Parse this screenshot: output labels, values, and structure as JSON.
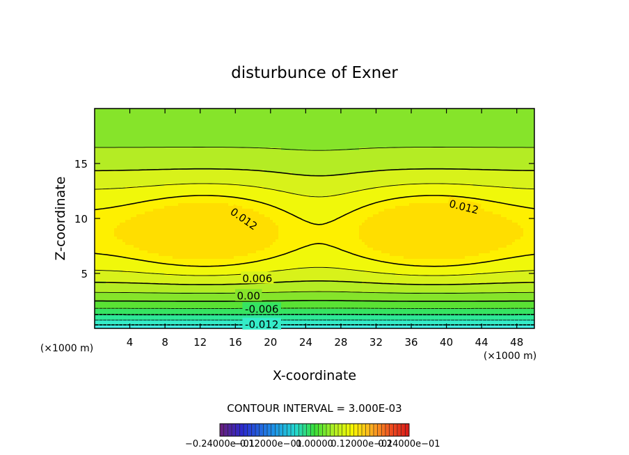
{
  "chart_data": {
    "type": "heatmap",
    "title": "disturbunce of Exner",
    "xlabel": "X-coordinate",
    "ylabel": "Z-coordinate",
    "x_unit": "(×1000 m)",
    "x_unit_right": "(×1000 m)",
    "xlim": [
      0,
      50
    ],
    "ylim": [
      0,
      20
    ],
    "x_ticks": [
      4,
      8,
      12,
      16,
      20,
      24,
      28,
      32,
      36,
      40,
      44,
      48
    ],
    "x_tick_labels": [
      "4",
      "8",
      "12",
      "16",
      "20",
      "24",
      "28",
      "32",
      "36",
      "40",
      "44",
      "48"
    ],
    "y_ticks": [
      5,
      10,
      15
    ],
    "y_tick_labels": [
      "5",
      "10",
      "15"
    ],
    "contour_labels": [
      {
        "text": "0.012",
        "x": 17,
        "y": 10.0,
        "angle": 35
      },
      {
        "text": "0.012",
        "x": 42,
        "y": 11.1,
        "angle": 14
      },
      {
        "text": "0.006",
        "x": 18.5,
        "y": 4.6,
        "angle": 0
      },
      {
        "text": "0.00",
        "x": 17.5,
        "y": 3.0,
        "angle": 0
      },
      {
        "text": "-0.006",
        "x": 19,
        "y": 1.8,
        "angle": 0
      },
      {
        "text": "-0.012",
        "x": 19,
        "y": 0.4,
        "angle": 0
      }
    ],
    "contour_interval_text": "CONTOUR INTERVAL = 3.000E-03",
    "colorbar_labels": [
      "−0.24000e−01",
      "−0.12000e−01",
      "0.00000",
      "0.12000e−01",
      "0.24000e−01"
    ],
    "colorbar_range": [
      -0.024,
      0.024
    ]
  }
}
